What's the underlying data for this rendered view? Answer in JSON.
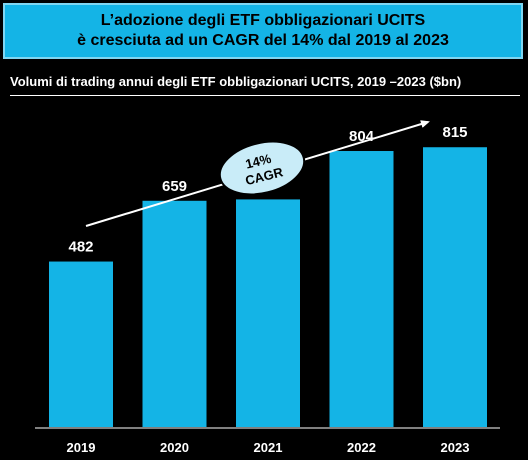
{
  "headline": {
    "line1": "L’adozione degli ETF obbligazionari UCITS",
    "line2": "è cresciuta ad un CAGR del 14% dal 2019 al 2023"
  },
  "colors": {
    "accent": "#14b4e6",
    "bar": "#14b4e6",
    "background": "#000000",
    "text": "#ffffff"
  },
  "chart_data": {
    "type": "bar",
    "title": "Volumi di trading annui degli ETF obbligazionari UCITS, 2019 –2023 ($bn)",
    "categories": [
      "2019",
      "2020",
      "2021",
      "2022",
      "2023"
    ],
    "values": [
      482,
      659,
      663,
      804,
      815
    ],
    "ylim": [
      0,
      1040
    ],
    "grid": false,
    "legend": "none",
    "annotation": {
      "label_line1": "14%",
      "label_line2": "CAGR",
      "shape": "ellipse on rising arrow"
    }
  }
}
